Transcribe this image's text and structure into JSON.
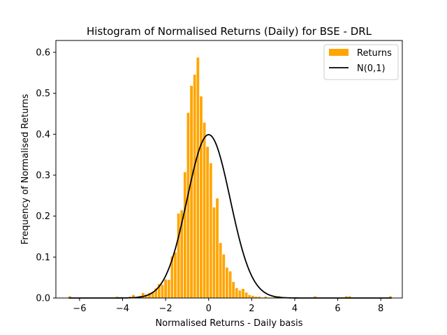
{
  "chart_data": {
    "type": "bar",
    "title": "Histogram of Normalised Returns (Daily) for BSE - DRL",
    "xlabel": "Normalised Returns - Daily basis",
    "ylabel": "Frequency of Normalised Returns",
    "xlim": [
      -7.1,
      9.0
    ],
    "ylim": [
      0,
      0.6
    ],
    "x_ticks": [
      -6,
      -4,
      -2,
      0,
      2,
      4,
      6,
      8
    ],
    "y_ticks": [
      0.0,
      0.1,
      0.2,
      0.3,
      0.4,
      0.5,
      0.6
    ],
    "x_tick_labels": [
      "−6",
      "−4",
      "−2",
      "0",
      "2",
      "4",
      "6",
      "8"
    ],
    "y_tick_labels": [
      "0.0",
      "0.1",
      "0.2",
      "0.3",
      "0.4",
      "0.5",
      "0.6"
    ],
    "grid": false,
    "legend": {
      "position": "top-right",
      "entries": [
        {
          "label": "Returns",
          "kind": "patch",
          "color": "#ffa500"
        },
        {
          "label": "N(0,1)",
          "kind": "line",
          "color": "#000000"
        }
      ]
    },
    "histogram": {
      "name": "Returns",
      "color": "#ffa500",
      "edgecolor": "#ffffff",
      "bin_width": 0.15,
      "bins": [
        {
          "x": -6.45,
          "y": 0.005
        },
        {
          "x": -4.25,
          "y": 0.004
        },
        {
          "x": -3.65,
          "y": 0.004
        },
        {
          "x": -3.5,
          "y": 0.008
        },
        {
          "x": -3.2,
          "y": 0.006
        },
        {
          "x": -3.05,
          "y": 0.013
        },
        {
          "x": -2.9,
          "y": 0.009
        },
        {
          "x": -2.75,
          "y": 0.013
        },
        {
          "x": -2.6,
          "y": 0.016
        },
        {
          "x": -2.45,
          "y": 0.024
        },
        {
          "x": -2.3,
          "y": 0.035
        },
        {
          "x": -2.15,
          "y": 0.033
        },
        {
          "x": -2.0,
          "y": 0.046
        },
        {
          "x": -1.85,
          "y": 0.045
        },
        {
          "x": -1.7,
          "y": 0.102
        },
        {
          "x": -1.55,
          "y": 0.112
        },
        {
          "x": -1.4,
          "y": 0.207
        },
        {
          "x": -1.25,
          "y": 0.215
        },
        {
          "x": -1.1,
          "y": 0.308
        },
        {
          "x": -0.95,
          "y": 0.453
        },
        {
          "x": -0.8,
          "y": 0.519
        },
        {
          "x": -0.65,
          "y": 0.546
        },
        {
          "x": -0.5,
          "y": 0.588
        },
        {
          "x": -0.35,
          "y": 0.493
        },
        {
          "x": -0.2,
          "y": 0.429
        },
        {
          "x": -0.05,
          "y": 0.37
        },
        {
          "x": 0.1,
          "y": 0.33
        },
        {
          "x": 0.25,
          "y": 0.222
        },
        {
          "x": 0.4,
          "y": 0.244
        },
        {
          "x": 0.55,
          "y": 0.135
        },
        {
          "x": 0.7,
          "y": 0.107
        },
        {
          "x": 0.85,
          "y": 0.075
        },
        {
          "x": 1.0,
          "y": 0.066
        },
        {
          "x": 1.15,
          "y": 0.04
        },
        {
          "x": 1.3,
          "y": 0.025
        },
        {
          "x": 1.45,
          "y": 0.019
        },
        {
          "x": 1.6,
          "y": 0.023
        },
        {
          "x": 1.75,
          "y": 0.014
        },
        {
          "x": 1.9,
          "y": 0.008
        },
        {
          "x": 2.05,
          "y": 0.006
        },
        {
          "x": 2.2,
          "y": 0.004
        },
        {
          "x": 2.35,
          "y": 0.004
        },
        {
          "x": 2.65,
          "y": 0.004
        },
        {
          "x": 3.1,
          "y": 0.004
        },
        {
          "x": 3.25,
          "y": 0.005
        },
        {
          "x": 4.95,
          "y": 0.005
        },
        {
          "x": 6.4,
          "y": 0.005
        },
        {
          "x": 6.55,
          "y": 0.005
        },
        {
          "x": 8.45,
          "y": 0.005
        }
      ]
    },
    "curve": {
      "name": "N(0,1)",
      "color": "#000000",
      "function": "standard normal pdf",
      "x_range": [
        -6.5,
        8.5
      ]
    }
  }
}
